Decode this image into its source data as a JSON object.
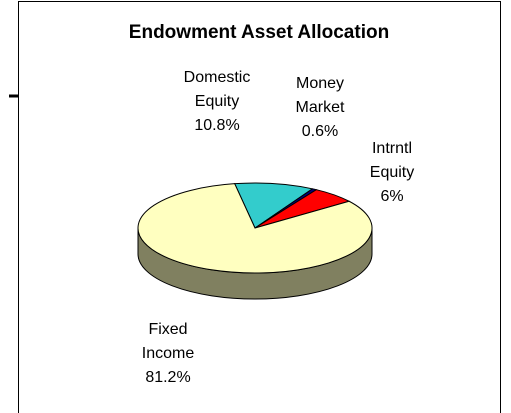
{
  "chart_data": {
    "type": "pie3d",
    "title": "Endowment Asset Allocation",
    "categories": [
      "Domestic Equity",
      "Money Market",
      "Intrntl Equity",
      "Fixed Income"
    ],
    "values": [
      10.8,
      0.6,
      6,
      81.2
    ],
    "value_labels": [
      "10.8%",
      "0.6%",
      "6%",
      "81.2%"
    ],
    "colors": [
      "#33cccc",
      "#000080",
      "#ff0000",
      "#ffffc0"
    ]
  }
}
